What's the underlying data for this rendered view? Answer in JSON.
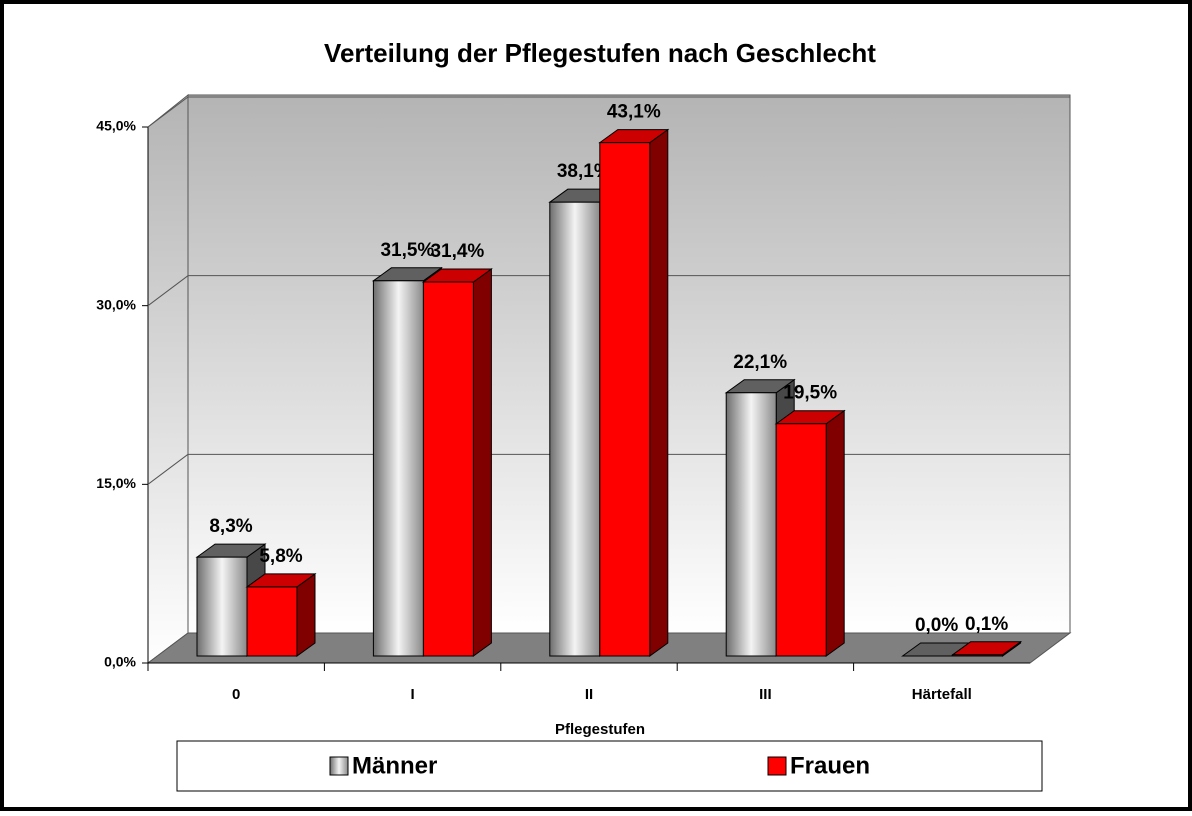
{
  "chart_data": {
    "type": "bar3d",
    "title": "Verteilung der Pflegestufen nach Geschlecht",
    "x_label": "Pflegestufen",
    "categories": [
      "0",
      "I",
      "II",
      "III",
      "Härtefall"
    ],
    "series": [
      {
        "name": "Männer",
        "color": "#a0a0a0",
        "values": [
          8.3,
          31.5,
          38.1,
          22.1,
          0.0
        ],
        "value_labels": [
          "8,3%",
          "31,5%",
          "38,1%",
          "22,1%",
          "0,0%"
        ]
      },
      {
        "name": "Frauen",
        "color": "#ff0000",
        "values": [
          5.8,
          31.4,
          43.1,
          19.5,
          0.1
        ],
        "value_labels": [
          "5,8%",
          "31,4%",
          "43,1%",
          "19,5%",
          "0,1%"
        ]
      }
    ],
    "ylim": [
      0,
      45
    ],
    "yticks": [
      {
        "value": 0,
        "label": "0,0%"
      },
      {
        "value": 15,
        "label": "15,0%"
      },
      {
        "value": 30,
        "label": "30,0%"
      },
      {
        "value": 45,
        "label": "45,0%"
      }
    ],
    "grid": true
  }
}
